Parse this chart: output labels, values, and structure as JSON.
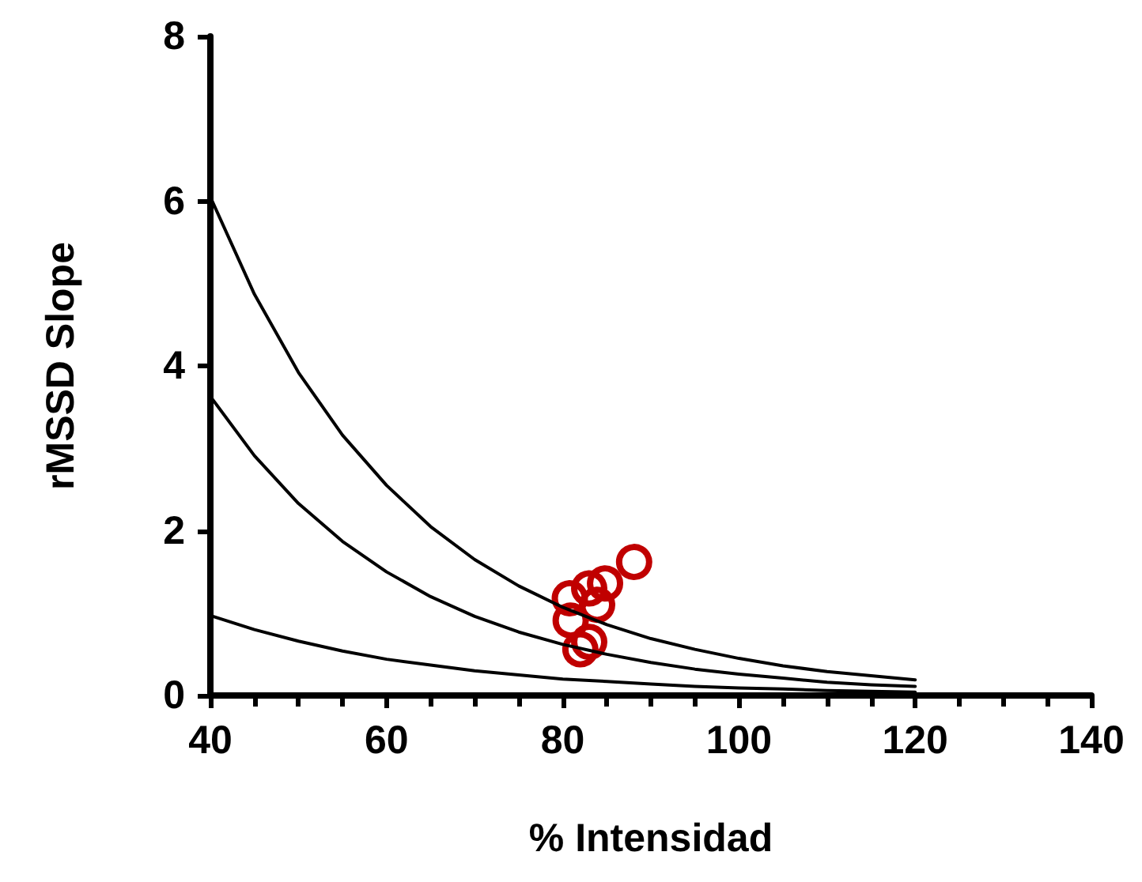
{
  "chart_data": {
    "type": "line",
    "xlabel": "% Intensidad",
    "ylabel": "rMSSD Slope",
    "xlim": [
      40,
      140
    ],
    "xticks": [
      40,
      60,
      80,
      100,
      120,
      140
    ],
    "ylim": [
      0,
      8
    ],
    "yticks": [
      0,
      2,
      4,
      6,
      8
    ],
    "grid": false,
    "marker": "none",
    "line_style": "solid",
    "x": [
      40,
      45,
      50,
      55,
      60,
      65,
      70,
      75,
      80,
      85,
      90,
      95,
      100,
      105,
      110,
      115,
      120
    ],
    "series": [
      {
        "color": "#000000",
        "values": [
          6.05,
          4.87,
          3.92,
          3.16,
          2.55,
          2.05,
          1.65,
          1.33,
          1.07,
          0.86,
          0.69,
          0.56,
          0.45,
          0.36,
          0.29,
          0.24,
          0.19
        ]
      },
      {
        "color": "#000000",
        "values": [
          3.63,
          2.91,
          2.33,
          1.87,
          1.5,
          1.2,
          0.96,
          0.77,
          0.62,
          0.5,
          0.4,
          0.32,
          0.26,
          0.21,
          0.16,
          0.13,
          0.11
        ]
      },
      {
        "color": "#000000",
        "values": [
          0.97,
          0.8,
          0.66,
          0.54,
          0.44,
          0.37,
          0.3,
          0.25,
          0.2,
          0.17,
          0.14,
          0.11,
          0.09,
          0.08,
          0.06,
          0.05,
          0.04
        ]
      },
      {
        "type": "scatter",
        "marker": "circle",
        "color": "#c00000",
        "x": [
          88.1,
          84.8,
          83.0,
          80.8,
          83.9,
          80.9,
          83.0,
          82.0
        ],
        "values": [
          1.62,
          1.36,
          1.3,
          1.18,
          1.1,
          0.91,
          0.65,
          0.56
        ]
      }
    ]
  }
}
